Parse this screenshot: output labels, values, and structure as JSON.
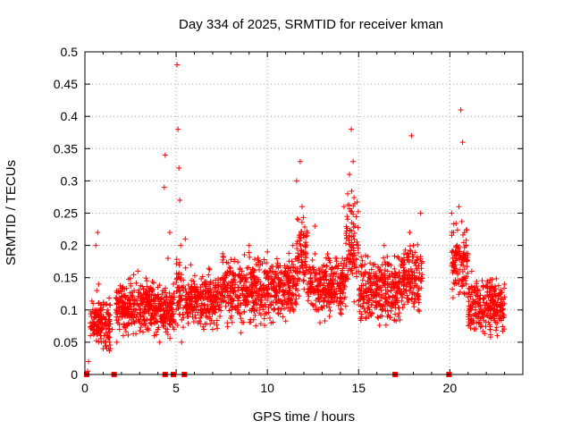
{
  "chart_data": {
    "type": "scatter",
    "title": "Day 334 of 2025, SRMTID for receiver kman",
    "xlabel": "GPS time / hours",
    "ylabel": "SRMTID / TECUs",
    "xlim": [
      0,
      24
    ],
    "ylim": [
      0,
      0.5
    ],
    "x_ticks": [
      0,
      5,
      10,
      15,
      20
    ],
    "x_tick_labels": [
      "0",
      "5",
      "10",
      "15",
      "20"
    ],
    "y_ticks": [
      0,
      0.05,
      0.1,
      0.15,
      0.2,
      0.25,
      0.3,
      0.35,
      0.4,
      0.45,
      0.5
    ],
    "y_tick_labels": [
      "0",
      "0.05",
      "0.1",
      "0.15",
      "0.2",
      "0.25",
      "0.3",
      "0.35",
      "0.4",
      "0.45",
      "0.5"
    ],
    "grid": true,
    "marker": "+",
    "color": "#ff0000",
    "series": [
      {
        "name": "SRMTID",
        "x": [
          0.15,
          0.2,
          0.3,
          0.35,
          0.4,
          0.45,
          0.5,
          0.55,
          0.6,
          0.65,
          0.7,
          0.75,
          0.8,
          0.85,
          0.9,
          0.95,
          1.0,
          1.05,
          1.1,
          1.15,
          1.2,
          1.25,
          1.3,
          1.35,
          1.4,
          1.5,
          1.75,
          1.8,
          1.9,
          2.0,
          2.1,
          2.2,
          2.3,
          2.4,
          2.5,
          2.6,
          2.7,
          2.8,
          2.9,
          3.0,
          3.1,
          3.2,
          3.3,
          3.4,
          3.5,
          3.6,
          3.7,
          3.8,
          3.9,
          4.0,
          4.1,
          4.2,
          4.3,
          4.35,
          4.4,
          4.45,
          4.5,
          4.55,
          4.6,
          4.65,
          4.7,
          4.75,
          4.8,
          4.85,
          4.9,
          4.95,
          5.0,
          5.05,
          5.1,
          5.15,
          5.2,
          5.25,
          5.3,
          5.4,
          5.5,
          5.6,
          5.7,
          5.8,
          5.9,
          6.0,
          6.2,
          6.4,
          6.6,
          6.8,
          7.0,
          7.2,
          7.4,
          7.6,
          7.8,
          8.0,
          8.2,
          8.4,
          8.6,
          8.8,
          9.0,
          9.2,
          9.4,
          9.6,
          9.8,
          10.0,
          10.2,
          10.4,
          10.6,
          10.8,
          11.0,
          11.2,
          11.4,
          11.6,
          11.7,
          11.8,
          11.9,
          12.0,
          12.2,
          12.4,
          12.6,
          12.8,
          13.0,
          13.2,
          13.4,
          13.6,
          13.8,
          14.0,
          14.2,
          14.4,
          14.5,
          14.6,
          14.7,
          14.8,
          15.0,
          15.2,
          15.4,
          15.6,
          15.8,
          16.0,
          16.2,
          16.4,
          16.6,
          16.8,
          17.0,
          17.2,
          17.4,
          17.6,
          17.8,
          17.9,
          18.0,
          18.2,
          18.4,
          20.1,
          20.2,
          20.3,
          20.4,
          20.5,
          20.6,
          20.7,
          20.8,
          20.9,
          21.0,
          21.2,
          21.4,
          21.6,
          21.8,
          22.0,
          22.2,
          22.4,
          22.6,
          22.8,
          23.0
        ],
        "y": [
          0.005,
          0.02,
          0.06,
          0.09,
          0.08,
          0.11,
          0.07,
          0.1,
          0.2,
          0.13,
          0.22,
          0.14,
          0.09,
          0.06,
          0.05,
          0.07,
          0.04,
          0.06,
          0.05,
          0.08,
          0.04,
          0.06,
          0.09,
          0.05,
          0.04,
          0.07,
          0.05,
          0.08,
          0.07,
          0.12,
          0.06,
          0.09,
          0.1,
          0.08,
          0.11,
          0.09,
          0.13,
          0.1,
          0.16,
          0.08,
          0.11,
          0.09,
          0.12,
          0.07,
          0.1,
          0.08,
          0.13,
          0.06,
          0.1,
          0.07,
          0.05,
          0.09,
          0.08,
          0.29,
          0.34,
          0.12,
          0.1,
          0.18,
          0.11,
          0.22,
          0.12,
          0.09,
          0.1,
          0.14,
          0.12,
          0.08,
          0.1,
          0.48,
          0.38,
          0.32,
          0.27,
          0.2,
          0.05,
          0.13,
          0.21,
          0.09,
          0.12,
          0.17,
          0.1,
          0.14,
          0.08,
          0.11,
          0.1,
          0.13,
          0.07,
          0.12,
          0.09,
          0.15,
          0.08,
          0.11,
          0.13,
          0.1,
          0.16,
          0.12,
          0.2,
          0.14,
          0.11,
          0.17,
          0.13,
          0.19,
          0.08,
          0.12,
          0.15,
          0.11,
          0.16,
          0.13,
          0.2,
          0.3,
          0.24,
          0.33,
          0.26,
          0.19,
          0.14,
          0.11,
          0.23,
          0.1,
          0.13,
          0.16,
          0.09,
          0.14,
          0.18,
          0.12,
          0.26,
          0.28,
          0.31,
          0.38,
          0.33,
          0.23,
          0.16,
          0.12,
          0.14,
          0.1,
          0.17,
          0.13,
          0.09,
          0.2,
          0.15,
          0.11,
          0.14,
          0.18,
          0.12,
          0.16,
          0.22,
          0.37,
          0.2,
          0.15,
          0.25,
          0.25,
          0.22,
          0.17,
          0.2,
          0.26,
          0.41,
          0.36,
          0.22,
          0.14,
          0.12,
          0.16,
          0.1,
          0.13,
          0.09,
          0.11,
          0.07,
          0.09,
          0.06,
          0.1,
          0.12
        ],
        "cloud": [
          {
            "x": [
              0.3,
              1.4
            ],
            "y": [
              0.03,
              0.13
            ]
          },
          {
            "x": [
              1.7,
              4.2
            ],
            "y": [
              0.05,
              0.16
            ]
          },
          {
            "x": [
              4.2,
              4.9
            ],
            "y": [
              0.05,
              0.15
            ]
          },
          {
            "x": [
              5.0,
              5.4
            ],
            "y": [
              0.06,
              0.2
            ]
          },
          {
            "x": [
              5.5,
              7.5
            ],
            "y": [
              0.06,
              0.17
            ]
          },
          {
            "x": [
              7.5,
              9.5
            ],
            "y": [
              0.06,
              0.2
            ]
          },
          {
            "x": [
              9.5,
              11.6
            ],
            "y": [
              0.07,
              0.2
            ]
          },
          {
            "x": [
              11.6,
              12.2
            ],
            "y": [
              0.1,
              0.28
            ]
          },
          {
            "x": [
              12.2,
              14.3
            ],
            "y": [
              0.07,
              0.2
            ]
          },
          {
            "x": [
              14.3,
              15.0
            ],
            "y": [
              0.1,
              0.3
            ]
          },
          {
            "x": [
              15.0,
              17.3
            ],
            "y": [
              0.06,
              0.2
            ]
          },
          {
            "x": [
              17.3,
              18.5
            ],
            "y": [
              0.08,
              0.22
            ]
          },
          {
            "x": [
              20.1,
              21.0
            ],
            "y": [
              0.1,
              0.25
            ]
          },
          {
            "x": [
              21.0,
              23.0
            ],
            "y": [
              0.05,
              0.16
            ]
          }
        ]
      },
      {
        "name": "zero markers",
        "x": [
          0.1,
          1.6,
          4.4,
          4.85,
          5.45,
          17.0,
          19.95
        ],
        "y": [
          0,
          0,
          0,
          0,
          0,
          0,
          0
        ]
      }
    ]
  }
}
